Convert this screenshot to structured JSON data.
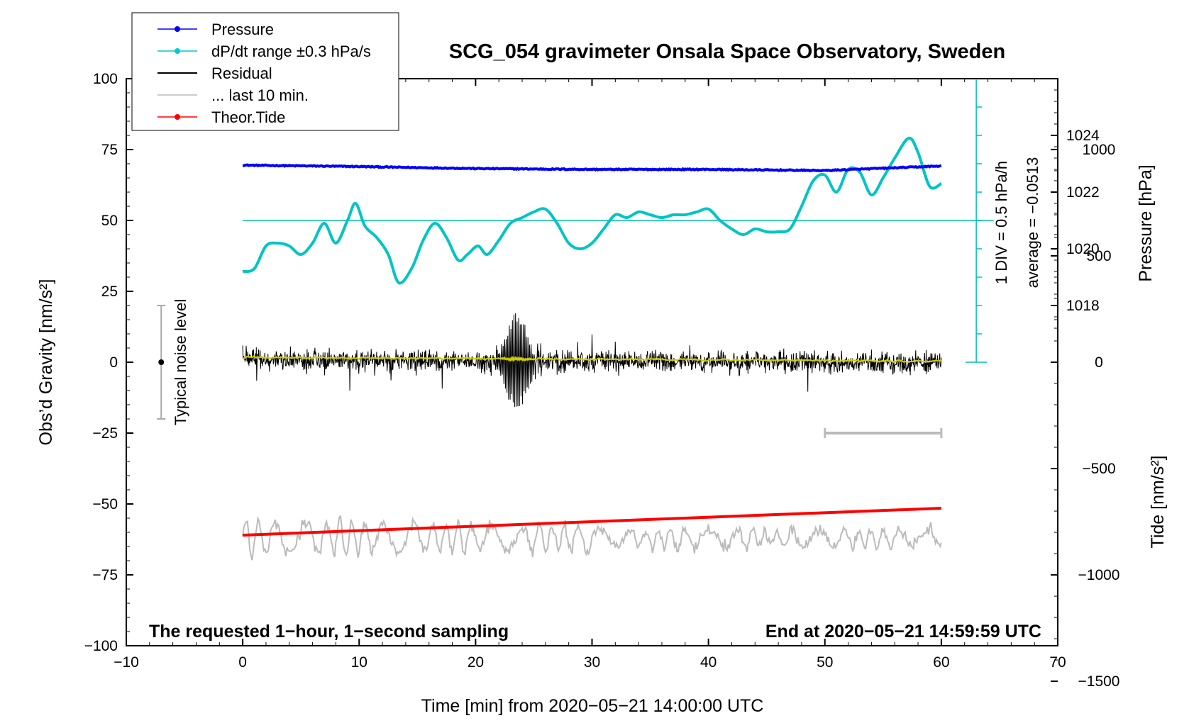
{
  "chart_data": {
    "type": "line",
    "title": "SCG_054 gravimeter Onsala Space Observatory, Sweden",
    "xlabel": "Time [min] from 2020−05−21 14:00:00 UTC",
    "ylabel_left": "Obs’d Gravity [nm/s²]",
    "ylabel_right_top": "Pressure [hPa]",
    "ylabel_right_bottom": "Tide [nm/s²]",
    "xlim": [
      -10,
      70
    ],
    "ylim_left": [
      -100,
      100
    ],
    "x_ticks": [
      "−10",
      "0",
      "10",
      "20",
      "30",
      "40",
      "50",
      "60",
      "70"
    ],
    "x_tick_values": [
      -10,
      0,
      10,
      20,
      30,
      40,
      50,
      60,
      70
    ],
    "y_ticks_left": [
      "100",
      "75",
      "50",
      "25",
      "0",
      "−25",
      "−50",
      "−75",
      "−100"
    ],
    "y_tick_values_left": [
      100,
      75,
      50,
      25,
      0,
      -25,
      -50,
      -75,
      -100
    ],
    "pressure_axis": {
      "ticks": [
        "1024",
        "1022",
        "1020",
        "1018"
      ],
      "values": [
        1024,
        1022,
        1020,
        1018
      ],
      "gravity_equivalent": [
        80,
        60,
        40,
        20
      ]
    },
    "tide_axis": {
      "ticks": [
        "1000",
        "500",
        "0",
        "−500",
        "−1000",
        "−1500"
      ],
      "values": [
        1000,
        500,
        0,
        -500,
        -1000,
        -1500
      ]
    },
    "dpdt_scale_label": "1 DIV = 0.5 hPa/h",
    "dpdt_average_label": "average = −0.0513",
    "noise_label": "Typical noise level",
    "footnote_left": "The requested 1−hour, 1−second sampling",
    "footnote_right": "End at 2020−05−21 14:59:59 UTC",
    "legend": [
      {
        "label": "Pressure",
        "color": "#0000ff"
      },
      {
        "label": "dP/dt range ±0.3 hPa/s",
        "color": "#00cccc"
      },
      {
        "label": "Residual",
        "color": "#000000"
      },
      {
        "label": "... last 10 min.",
        "color": "#bbbbbb"
      },
      {
        "label": "Theor.Tide",
        "color": "#ff0000"
      }
    ],
    "series": [
      {
        "name": "Pressure",
        "color": "#0000ff",
        "x": [
          0,
          10,
          20,
          30,
          40,
          50,
          55,
          60
        ],
        "gravity_units": [
          69.5,
          69,
          68.3,
          68,
          68,
          67.6,
          68.4,
          69.2
        ],
        "approx_hpa": [
          1022.9,
          1022.85,
          1022.8,
          1022.8,
          1022.8,
          1022.75,
          1022.85,
          1022.9
        ]
      },
      {
        "name": "dP/dt",
        "color": "#00cccc",
        "x": [
          0,
          1,
          2,
          3,
          4,
          5,
          6,
          7,
          8,
          9,
          9.7,
          10.5,
          11.5,
          12.5,
          13.4,
          14.5,
          15.5,
          16.5,
          17.5,
          18.5,
          19.3,
          20.2,
          21,
          22,
          23,
          24,
          25,
          26,
          27,
          28,
          29,
          30,
          31,
          32,
          33,
          34,
          35,
          36,
          37,
          38,
          39,
          40,
          41,
          42,
          43,
          44,
          45,
          46,
          47,
          48,
          49,
          50,
          51,
          52,
          53,
          54,
          55,
          56,
          57.2,
          58,
          59,
          60
        ],
        "values": [
          32,
          33,
          41,
          42,
          41,
          38,
          42,
          49,
          42,
          50,
          56,
          48,
          44,
          38,
          28,
          33,
          43,
          49,
          44,
          36,
          38,
          41,
          38,
          43,
          49,
          51,
          53,
          54,
          49,
          42,
          40,
          42,
          47,
          52,
          51,
          53,
          52,
          51,
          52,
          52,
          53,
          54,
          50,
          47,
          45,
          47,
          46,
          46,
          47,
          55,
          64,
          66,
          60,
          68,
          67,
          59,
          65,
          72,
          79,
          74,
          62,
          63
        ],
        "average": -0.0513
      },
      {
        "name": "Residual",
        "color": "#000000",
        "x_range": [
          0,
          60
        ],
        "typical_amplitude": 3,
        "burst_center_min": 23.5,
        "burst_peak": 18,
        "burst_trough": -21
      },
      {
        "name": "Residual smoothed",
        "color": "#cccc00",
        "x_range": [
          0,
          60
        ],
        "typical_amplitude": 1.5
      },
      {
        "name": "... last 10 min.",
        "color": "#bbbbbb",
        "x_range": [
          0,
          60
        ],
        "center": -62,
        "approx_range": [
          -72,
          -48
        ]
      },
      {
        "name": "Theor.Tide",
        "color": "#ff0000",
        "x": [
          0,
          60
        ],
        "values": [
          -61,
          -51.5
        ]
      }
    ],
    "annotations": {
      "noise_bar": {
        "x": -7,
        "y_low": -20,
        "y_high": 20,
        "center": 0
      },
      "scale_bar": {
        "x_start": 50,
        "x_end": 60,
        "y": -25
      }
    }
  }
}
